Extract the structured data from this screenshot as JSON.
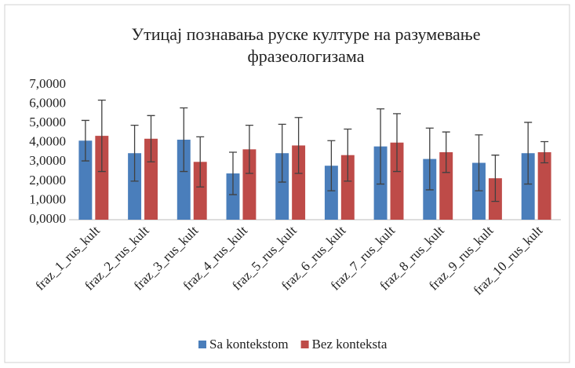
{
  "chart_data": {
    "type": "bar",
    "title": "Утицај познавања руске културе на разумевање фразеологизама",
    "categories": [
      "fraz_1_rus_kult",
      "fraz_2_rus_kult",
      "fraz_3_rus_kult",
      "fraz_4_rus_kult",
      "fraz_5_rus_kult",
      "fraz_6_rus_kult",
      "fraz_7_rus_kult",
      "fraz_8_rus_kult",
      "fraz_9_rus_kult",
      "fraz_10_rus_kult"
    ],
    "series": [
      {
        "name": "Sa kontekstom",
        "color": "#4a7ebb",
        "values": [
          4.1,
          3.45,
          4.15,
          2.4,
          3.45,
          2.8,
          3.8,
          3.15,
          2.95,
          3.45
        ],
        "errors": [
          1.05,
          1.45,
          1.65,
          1.1,
          1.5,
          1.3,
          1.95,
          1.6,
          1.45,
          1.6
        ]
      },
      {
        "name": "Bez konteksta",
        "color": "#be4b48",
        "values": [
          4.35,
          4.2,
          3.0,
          3.65,
          3.85,
          3.35,
          4.0,
          3.5,
          2.15,
          3.5
        ],
        "errors": [
          1.85,
          1.2,
          1.3,
          1.25,
          1.45,
          1.35,
          1.5,
          1.05,
          1.2,
          0.55
        ]
      }
    ],
    "ylim": [
      0,
      7
    ],
    "yticks": [
      {
        "value": 0,
        "label": "0,0000"
      },
      {
        "value": 1,
        "label": "1,0000"
      },
      {
        "value": 2,
        "label": "2,0000"
      },
      {
        "value": 3,
        "label": "3,0000"
      },
      {
        "value": 4,
        "label": "4,0000"
      },
      {
        "value": 5,
        "label": "5,0000"
      },
      {
        "value": 6,
        "label": "6,0000"
      },
      {
        "value": 7,
        "label": "7,0000"
      }
    ],
    "grid": false,
    "legend": "bottom"
  }
}
